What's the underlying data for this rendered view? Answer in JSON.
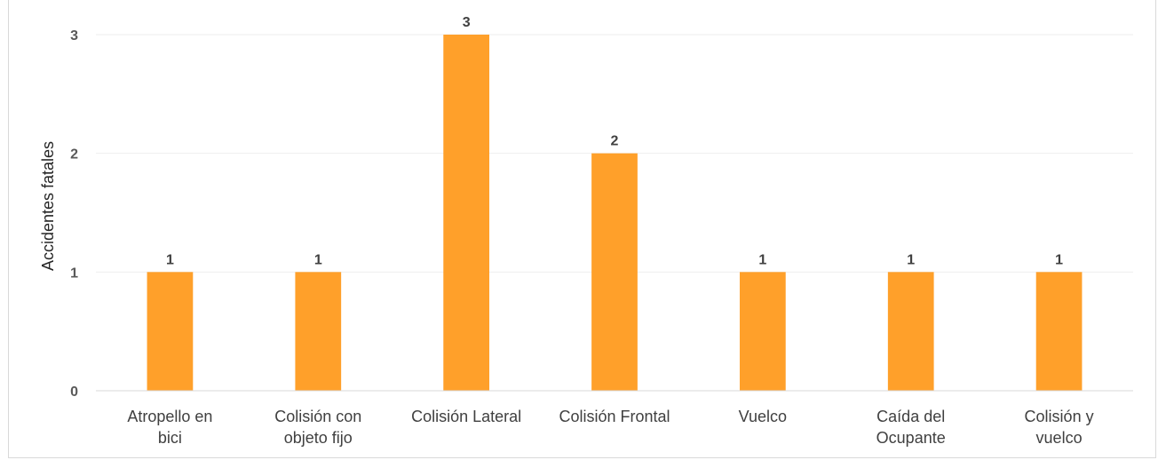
{
  "chart_data": {
    "type": "bar",
    "title": "",
    "xlabel": "",
    "ylabel": "Accidentes fatales",
    "categories": [
      [
        "Atropello en",
        "bici"
      ],
      [
        "Colisión con",
        "objeto fijo"
      ],
      [
        "Colisión Lateral"
      ],
      [
        "Colisión Frontal"
      ],
      [
        "Vuelco"
      ],
      [
        "Caída del",
        "Ocupante"
      ],
      [
        "Colisión y",
        "vuelco"
      ]
    ],
    "values": [
      1,
      1,
      3,
      2,
      1,
      1,
      1
    ],
    "data_labels": [
      "1",
      "1",
      "3",
      "2",
      "1",
      "1",
      "1"
    ],
    "ylim": [
      0,
      3
    ],
    "yticks": [
      "0",
      "1",
      "2",
      "3"
    ],
    "grid": true,
    "legend": "none",
    "bar_color": "#FFA02A",
    "grid_color": "#eeeeee",
    "axis_color": "#d9d9d9"
  }
}
